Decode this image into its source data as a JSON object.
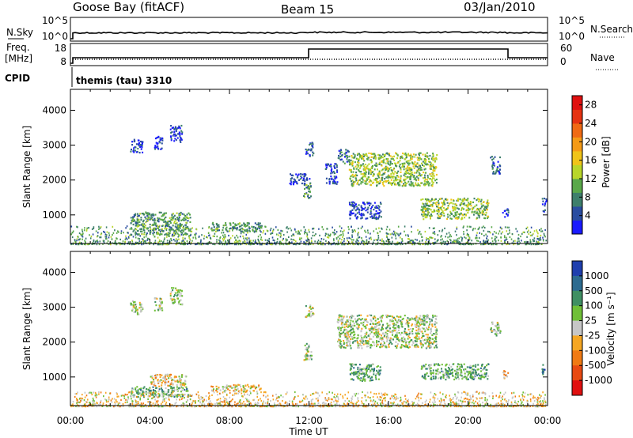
{
  "header": {
    "station": "Goose Bay (fitACF)",
    "beam": "Beam 15",
    "date": "03/Jan/2010"
  },
  "status_panel": {
    "nsky_label": "N.Sky",
    "nsearch_label": "N.Search",
    "freq_label_top": "Freq.",
    "freq_label_bottom": "[MHz]",
    "nave_label": "Nave",
    "cpid_label": "CPID",
    "cpid_value": "themis (tau) 3310",
    "noise_ticks": [
      "10^5",
      "10^0"
    ],
    "freq_ticks": [
      "18",
      "8"
    ],
    "nave_ticks": [
      "60",
      "0"
    ]
  },
  "chart_data": [
    {
      "type": "heatmap",
      "name": "power-panel",
      "title": "",
      "xlabel": "",
      "ylabel": "Slant Range [km]",
      "x_ticks": [
        "00:00",
        "04:00",
        "08:00",
        "12:00",
        "16:00",
        "20:00",
        "00:00"
      ],
      "x_range_hours": [
        0,
        24
      ],
      "y_ticks": [
        1000,
        2000,
        3000,
        4000
      ],
      "ylim": [
        180,
        4600
      ],
      "colorbar": {
        "label": "Power [dB]",
        "ticks": [
          4,
          8,
          12,
          16,
          20,
          24,
          28
        ],
        "range": [
          0,
          30
        ],
        "colors": [
          "#1a1aff",
          "#2a4da0",
          "#3e7f6b",
          "#5aa84a",
          "#b8d62a",
          "#f0c419",
          "#f59a16",
          "#f06a14",
          "#e63312",
          "#e01010"
        ]
      },
      "scatter_regions": [
        {
          "t0": 3.0,
          "t1": 3.6,
          "r0": 2800,
          "r1": 3200,
          "level": 1
        },
        {
          "t0": 4.2,
          "t1": 4.6,
          "r0": 2900,
          "r1": 3300,
          "level": 1
        },
        {
          "t0": 5.0,
          "t1": 5.6,
          "r0": 3100,
          "r1": 3600,
          "level": 1
        },
        {
          "t0": 3.0,
          "t1": 6.0,
          "r0": 450,
          "r1": 1100,
          "level": 3
        },
        {
          "t0": 7.0,
          "t1": 9.6,
          "r0": 550,
          "r1": 800,
          "level": 3
        },
        {
          "t0": 11.8,
          "t1": 12.2,
          "r0": 2700,
          "r1": 3100,
          "level": 2
        },
        {
          "t0": 11.7,
          "t1": 12.1,
          "r0": 1500,
          "r1": 2000,
          "level": 3
        },
        {
          "t0": 11.0,
          "t1": 12.0,
          "r0": 1900,
          "r1": 2200,
          "level": 1
        },
        {
          "t0": 12.8,
          "t1": 13.4,
          "r0": 1900,
          "r1": 2500,
          "level": 1
        },
        {
          "t0": 13.4,
          "t1": 14.0,
          "r0": 2500,
          "r1": 2900,
          "level": 2
        },
        {
          "t0": 14.0,
          "t1": 18.4,
          "r0": 1850,
          "r1": 2800,
          "level": 4
        },
        {
          "t0": 14.0,
          "t1": 15.6,
          "r0": 900,
          "r1": 1400,
          "level": 1
        },
        {
          "t0": 17.6,
          "t1": 21.0,
          "r0": 900,
          "r1": 1500,
          "level": 4
        },
        {
          "t0": 21.1,
          "t1": 21.6,
          "r0": 2200,
          "r1": 2700,
          "level": 2
        },
        {
          "t0": 21.7,
          "t1": 22.0,
          "r0": 950,
          "r1": 1200,
          "level": 1
        },
        {
          "t0": 23.7,
          "t1": 24.0,
          "r0": 1100,
          "r1": 1500,
          "level": 1
        }
      ],
      "ground_band": {
        "r0": 180,
        "r1": 700,
        "level": 3
      }
    },
    {
      "type": "heatmap",
      "name": "velocity-panel",
      "title": "",
      "xlabel": "Time UT",
      "ylabel": "Slant Range [km]",
      "x_ticks": [
        "00:00",
        "04:00",
        "08:00",
        "12:00",
        "16:00",
        "20:00",
        "00:00"
      ],
      "x_range_hours": [
        0,
        24
      ],
      "y_ticks": [
        1000,
        2000,
        3000,
        4000
      ],
      "ylim": [
        180,
        4600
      ],
      "colorbar": {
        "label": "Velocity [m s⁻¹]",
        "ticks": [
          1000,
          500,
          100,
          25,
          -25,
          -100,
          -500,
          -1000
        ],
        "colors": [
          "#1f3fae",
          "#2d6b90",
          "#3f8f63",
          "#6fbf38",
          "#c6c6c6",
          "#f5a623",
          "#f07a14",
          "#e84a12",
          "#e01010"
        ]
      },
      "scatter_regions": [
        {
          "t0": 3.0,
          "t1": 3.6,
          "r0": 2800,
          "r1": 3200,
          "level": 4
        },
        {
          "t0": 4.2,
          "t1": 4.6,
          "r0": 2900,
          "r1": 3300,
          "level": 4
        },
        {
          "t0": 5.0,
          "t1": 5.6,
          "r0": 3100,
          "r1": 3600,
          "level": 4
        },
        {
          "t0": 4.0,
          "t1": 5.8,
          "r0": 750,
          "r1": 1100,
          "level": 5
        },
        {
          "t0": 3.0,
          "t1": 6.0,
          "r0": 450,
          "r1": 750,
          "level": 3
        },
        {
          "t0": 7.0,
          "t1": 9.6,
          "r0": 600,
          "r1": 800,
          "level": 5
        },
        {
          "t0": 11.8,
          "t1": 12.2,
          "r0": 2700,
          "r1": 3100,
          "level": 4
        },
        {
          "t0": 11.7,
          "t1": 12.1,
          "r0": 1500,
          "r1": 2000,
          "level": 4
        },
        {
          "t0": 13.4,
          "t1": 18.4,
          "r0": 1850,
          "r1": 2800,
          "level": 4
        },
        {
          "t0": 14.0,
          "t1": 15.6,
          "r0": 900,
          "r1": 1400,
          "level": 3
        },
        {
          "t0": 17.6,
          "t1": 21.0,
          "r0": 950,
          "r1": 1400,
          "level": 3
        },
        {
          "t0": 21.1,
          "t1": 21.6,
          "r0": 2200,
          "r1": 2600,
          "level": 4
        },
        {
          "t0": 21.7,
          "t1": 22.0,
          "r0": 950,
          "r1": 1200,
          "level": 5
        },
        {
          "t0": 23.7,
          "t1": 24.0,
          "r0": 1100,
          "r1": 1400,
          "level": 2
        }
      ],
      "ground_band": {
        "r0": 180,
        "r1": 600,
        "level": 5
      }
    }
  ]
}
